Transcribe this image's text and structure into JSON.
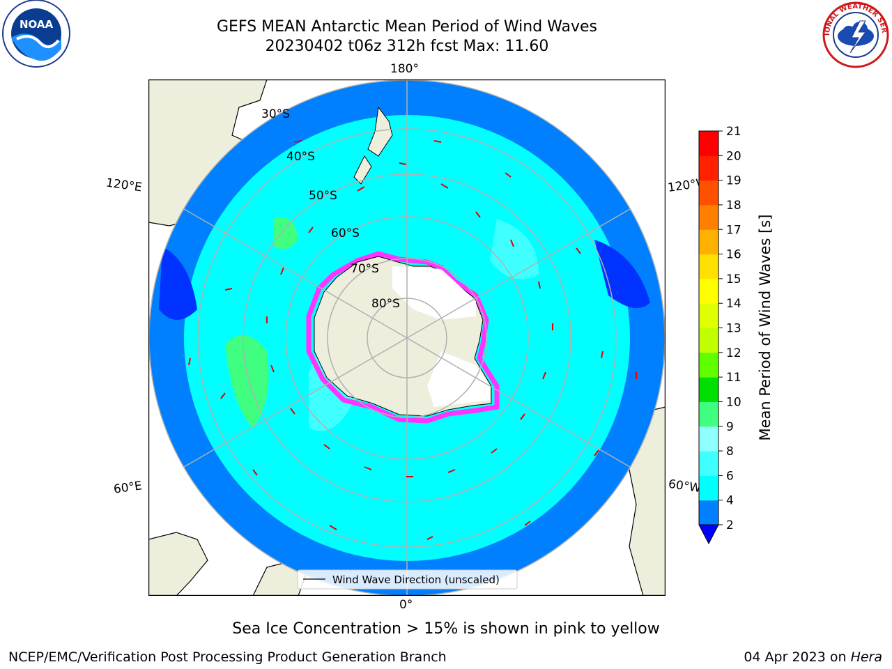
{
  "title": {
    "line1": "GEFS MEAN Antarctic Mean Period of Wind Waves",
    "line2": "20230402 t06z 312h fcst   Max: 11.60"
  },
  "logos": {
    "noaa": {
      "text": "NOAA",
      "icon": "noaa-logo"
    },
    "nws": {
      "text": "NATIONAL WEATHER SERVICE",
      "icon": "nws-logo"
    }
  },
  "map": {
    "projection": "south-polar-stereographic",
    "longitude_labels": {
      "top": "180°",
      "left_upper": "120°E",
      "left_lower": "60°E",
      "right_upper": "120°W",
      "right_lower": "60°W",
      "bottom": "0°"
    },
    "latitude_labels": [
      "30°S",
      "40°S",
      "50°S",
      "60°S",
      "70°S",
      "80°S"
    ],
    "legend": "Wind Wave Direction (unscaled)",
    "colors": {
      "ocean_low": "#0033ff",
      "ocean_2_4": "#0080ff",
      "ocean_4_6": "#00ffff",
      "ocean_6_8": "#40ffff",
      "ocean_8_9": "#8fffff",
      "ocean_9_10": "#40ff80",
      "land": "#eeeedd",
      "ice_edge": "#ff33ff",
      "arrows": "#e00000",
      "grid": "#b0b0b0"
    }
  },
  "colorbar": {
    "label": "Mean Period of Wind Waves [s]",
    "ticks": [
      "2",
      "4",
      "6",
      "8",
      "9",
      "10",
      "11",
      "12",
      "13",
      "14",
      "15",
      "16",
      "17",
      "18",
      "19",
      "20",
      "21"
    ],
    "colors": [
      "#0033ff",
      "#0080ff",
      "#00ffff",
      "#40ffff",
      "#8fffff",
      "#40ff80",
      "#00e000",
      "#60ff00",
      "#c0ff00",
      "#e0ff00",
      "#ffff00",
      "#ffe000",
      "#ffb000",
      "#ff8000",
      "#ff5000",
      "#ff2000",
      "#ff0000"
    ]
  },
  "footer": {
    "sea_ice_note": "Sea Ice Concentration > 15% is shown in pink to yellow",
    "credit": "NCEP/EMC/Verification Post Processing Product Generation Branch",
    "date": "04 Apr 2023 on ",
    "machine": "Hera"
  }
}
